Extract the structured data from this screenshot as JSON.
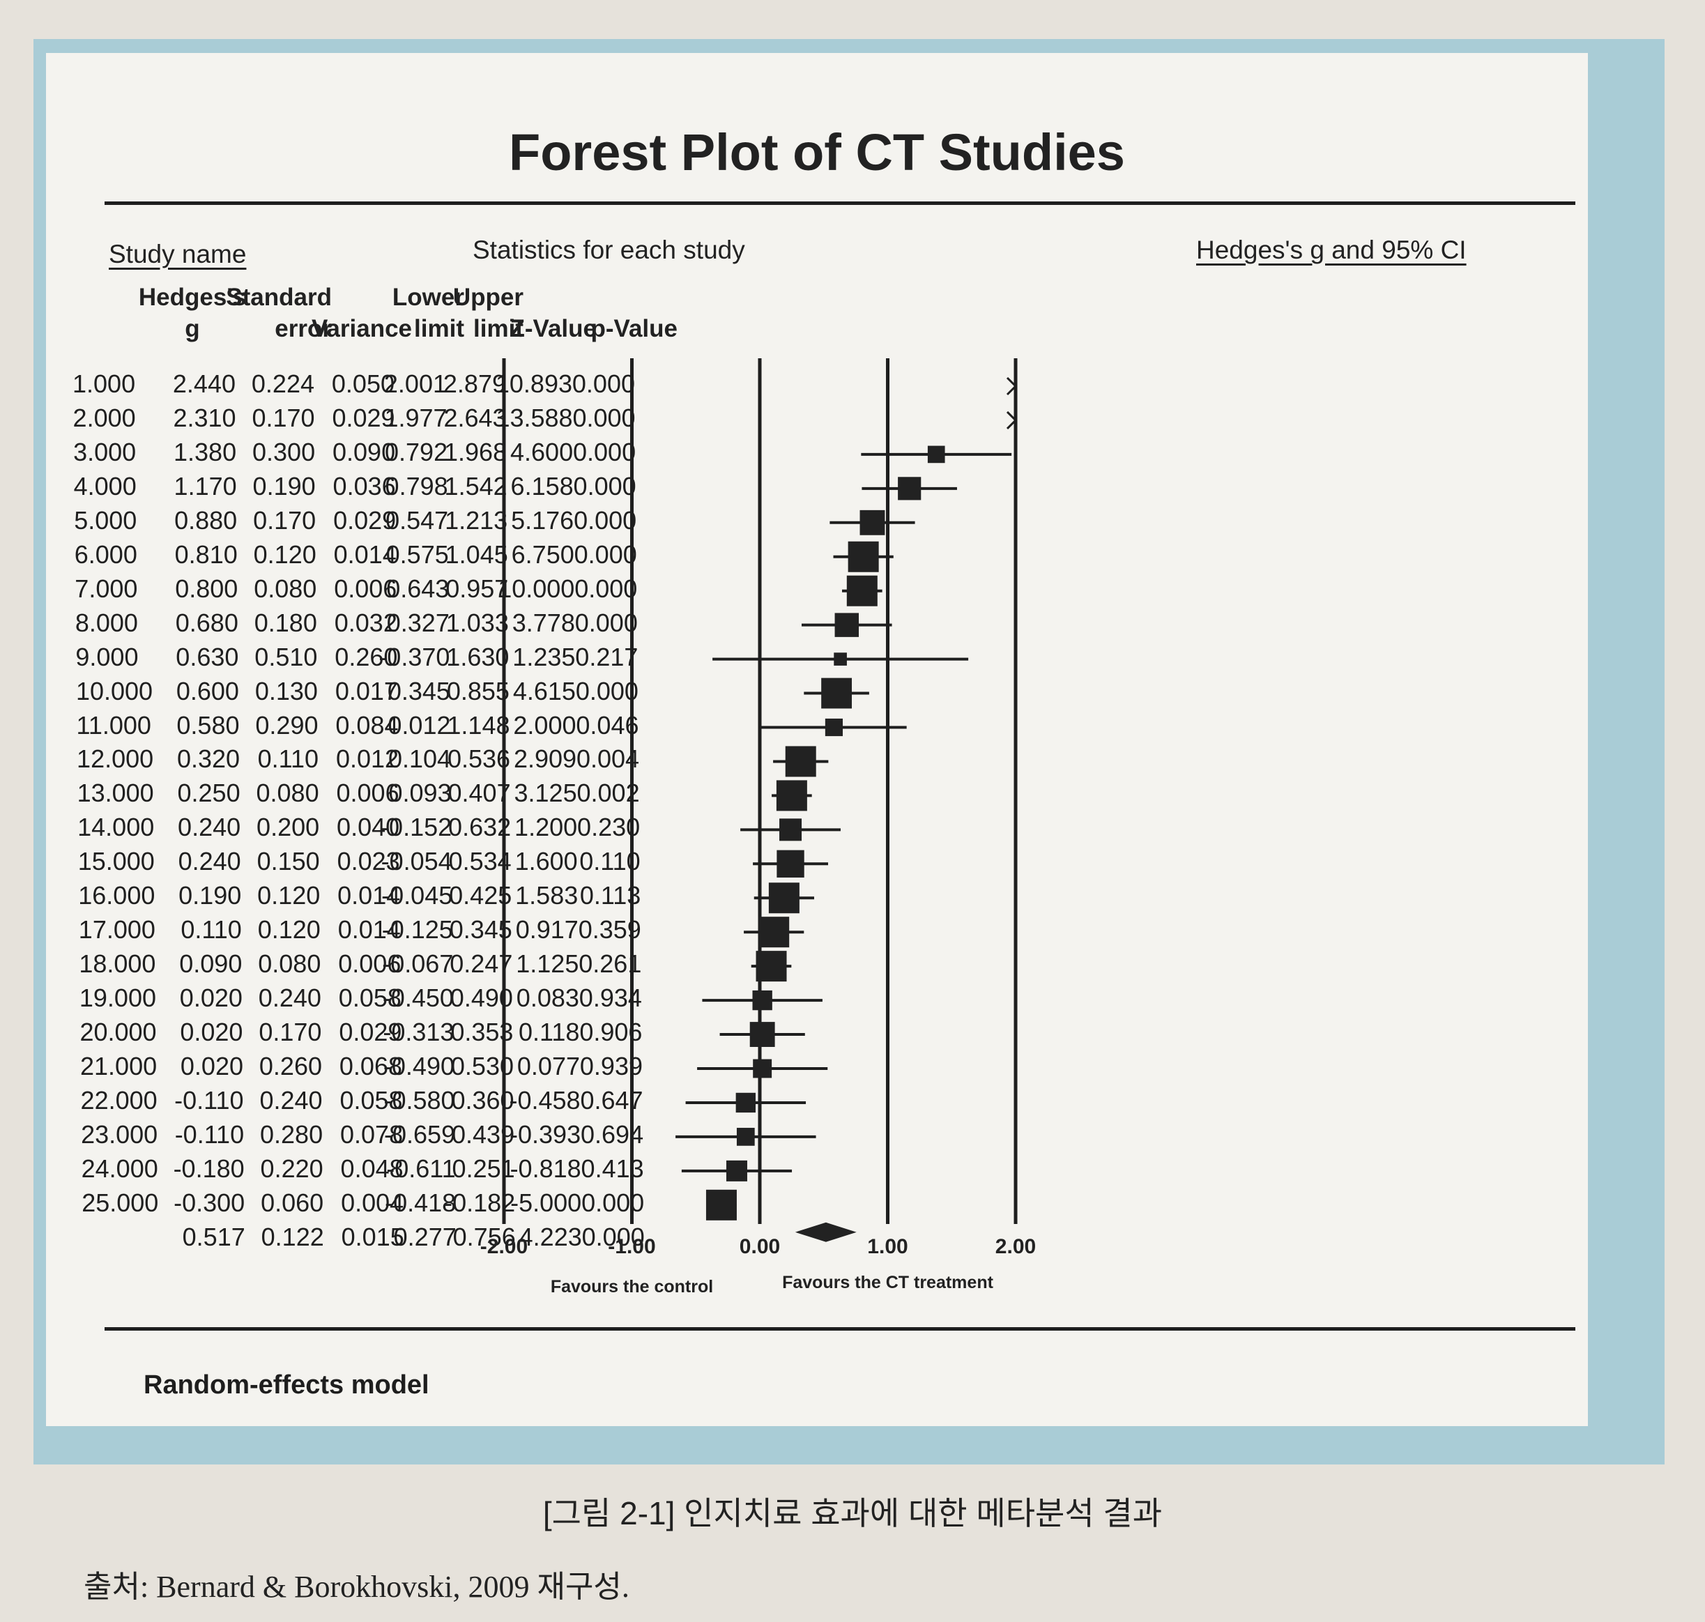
{
  "caption": "[그림 2-1] 인지치료 효과에 대한 메타분석 결과",
  "source": "출처: Bernard & Borokhovski, 2009 재구성.",
  "colors": {
    "frame": "#a9ccd6",
    "panel": "#f4f3ef",
    "ink": "#1e1e1e"
  },
  "chart_data": {
    "type": "forest",
    "title": "Forest Plot of CT Studies",
    "headers": {
      "study_name": "Study name",
      "statistics": "Statistics for each study",
      "plot": "Hedges's g and 95% CI"
    },
    "columns": [
      [
        "Hedges's",
        "g"
      ],
      [
        "Standard",
        "error"
      ],
      [
        "",
        "Variance"
      ],
      [
        "Lower",
        "limit"
      ],
      [
        "Upper",
        "limit"
      ],
      [
        "",
        "Z-Value"
      ],
      [
        "",
        "p-Value"
      ]
    ],
    "rows": [
      {
        "study": "1.000",
        "g": 2.44,
        "se": 0.224,
        "var": 0.05,
        "lower": 2.001,
        "upper": 2.879,
        "z": 10.893,
        "p": 0.0
      },
      {
        "study": "2.000",
        "g": 2.31,
        "se": 0.17,
        "var": 0.029,
        "lower": 1.977,
        "upper": 2.643,
        "z": 13.588,
        "p": 0.0
      },
      {
        "study": "3.000",
        "g": 1.38,
        "se": 0.3,
        "var": 0.09,
        "lower": 0.792,
        "upper": 1.968,
        "z": 4.6,
        "p": 0.0
      },
      {
        "study": "4.000",
        "g": 1.17,
        "se": 0.19,
        "var": 0.036,
        "lower": 0.798,
        "upper": 1.542,
        "z": 6.158,
        "p": 0.0
      },
      {
        "study": "5.000",
        "g": 0.88,
        "se": 0.17,
        "var": 0.029,
        "lower": 0.547,
        "upper": 1.213,
        "z": 5.176,
        "p": 0.0
      },
      {
        "study": "6.000",
        "g": 0.81,
        "se": 0.12,
        "var": 0.014,
        "lower": 0.575,
        "upper": 1.045,
        "z": 6.75,
        "p": 0.0
      },
      {
        "study": "7.000",
        "g": 0.8,
        "se": 0.08,
        "var": 0.006,
        "lower": 0.643,
        "upper": 0.957,
        "z": 10.0,
        "p": 0.0
      },
      {
        "study": "8.000",
        "g": 0.68,
        "se": 0.18,
        "var": 0.032,
        "lower": 0.327,
        "upper": 1.033,
        "z": 3.778,
        "p": 0.0
      },
      {
        "study": "9.000",
        "g": 0.63,
        "se": 0.51,
        "var": 0.26,
        "lower": -0.37,
        "upper": 1.63,
        "z": 1.235,
        "p": 0.217
      },
      {
        "study": "10.000",
        "g": 0.6,
        "se": 0.13,
        "var": 0.017,
        "lower": 0.345,
        "upper": 0.855,
        "z": 4.615,
        "p": 0.0
      },
      {
        "study": "11.000",
        "g": 0.58,
        "se": 0.29,
        "var": 0.084,
        "lower": 0.012,
        "upper": 1.148,
        "z": 2.0,
        "p": 0.046
      },
      {
        "study": "12.000",
        "g": 0.32,
        "se": 0.11,
        "var": 0.012,
        "lower": 0.104,
        "upper": 0.536,
        "z": 2.909,
        "p": 0.004
      },
      {
        "study": "13.000",
        "g": 0.25,
        "se": 0.08,
        "var": 0.006,
        "lower": 0.093,
        "upper": 0.407,
        "z": 3.125,
        "p": 0.002
      },
      {
        "study": "14.000",
        "g": 0.24,
        "se": 0.2,
        "var": 0.04,
        "lower": -0.152,
        "upper": 0.632,
        "z": 1.2,
        "p": 0.23
      },
      {
        "study": "15.000",
        "g": 0.24,
        "se": 0.15,
        "var": 0.023,
        "lower": -0.054,
        "upper": 0.534,
        "z": 1.6,
        "p": 0.11
      },
      {
        "study": "16.000",
        "g": 0.19,
        "se": 0.12,
        "var": 0.014,
        "lower": -0.045,
        "upper": 0.425,
        "z": 1.583,
        "p": 0.113
      },
      {
        "study": "17.000",
        "g": 0.11,
        "se": 0.12,
        "var": 0.014,
        "lower": -0.125,
        "upper": 0.345,
        "z": 0.917,
        "p": 0.359
      },
      {
        "study": "18.000",
        "g": 0.09,
        "se": 0.08,
        "var": 0.006,
        "lower": -0.067,
        "upper": 0.247,
        "z": 1.125,
        "p": 0.261
      },
      {
        "study": "19.000",
        "g": 0.02,
        "se": 0.24,
        "var": 0.058,
        "lower": -0.45,
        "upper": 0.49,
        "z": 0.083,
        "p": 0.934
      },
      {
        "study": "20.000",
        "g": 0.02,
        "se": 0.17,
        "var": 0.029,
        "lower": -0.313,
        "upper": 0.353,
        "z": 0.118,
        "p": 0.906
      },
      {
        "study": "21.000",
        "g": 0.02,
        "se": 0.26,
        "var": 0.068,
        "lower": -0.49,
        "upper": 0.53,
        "z": 0.077,
        "p": 0.939
      },
      {
        "study": "22.000",
        "g": -0.11,
        "se": 0.24,
        "var": 0.058,
        "lower": -0.58,
        "upper": 0.36,
        "z": -0.458,
        "p": 0.647
      },
      {
        "study": "23.000",
        "g": -0.11,
        "se": 0.28,
        "var": 0.078,
        "lower": -0.659,
        "upper": 0.439,
        "z": -0.393,
        "p": 0.694
      },
      {
        "study": "24.000",
        "g": -0.18,
        "se": 0.22,
        "var": 0.048,
        "lower": -0.611,
        "upper": 0.251,
        "z": -0.818,
        "p": 0.413
      },
      {
        "study": "25.000",
        "g": -0.3,
        "se": 0.06,
        "var": 0.004,
        "lower": -0.418,
        "upper": -0.182,
        "z": -5.0,
        "p": 0.0
      }
    ],
    "summary": {
      "study": "",
      "g": 0.517,
      "se": 0.122,
      "var": 0.015,
      "lower": 0.277,
      "upper": 0.756,
      "z": 4.223,
      "p": 0.0
    },
    "x_ticks": [
      "-2.00",
      "-1.00",
      "0.00",
      "1.00",
      "2.00"
    ],
    "xlim": [
      -2,
      2
    ],
    "x_labels": [
      "Favours the control",
      "Favours the CT treatment"
    ],
    "model": "Random-effects model"
  }
}
